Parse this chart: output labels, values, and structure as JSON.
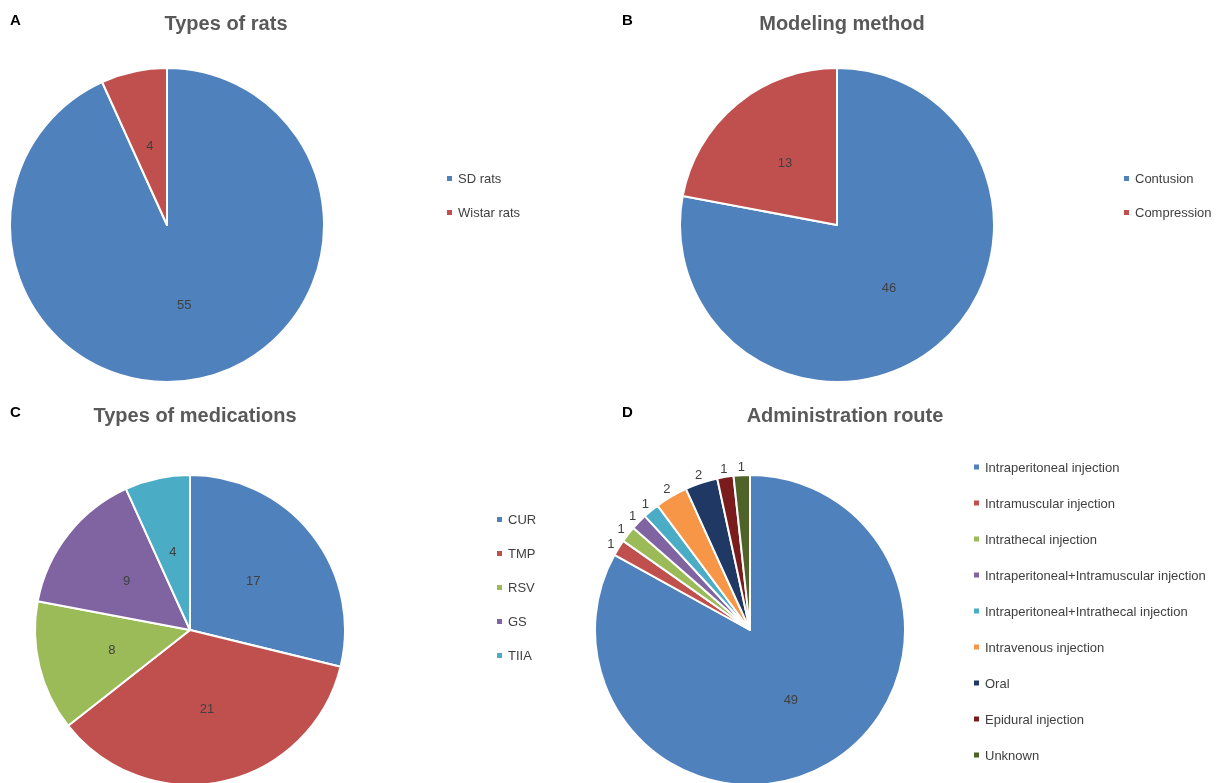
{
  "chart_data": [
    {
      "type": "pie",
      "title": "Types of rats",
      "annotations": [
        "A"
      ],
      "categories": [
        "SD rats",
        "Wistar rats"
      ],
      "values": [
        55,
        4
      ],
      "colors": [
        "#4f81bd",
        "#c0504d"
      ],
      "data_labels": true,
      "legend": "right"
    },
    {
      "type": "pie",
      "title": "Modeling method",
      "annotations": [
        "B"
      ],
      "categories": [
        "Contusion",
        "Compression"
      ],
      "values": [
        46,
        13
      ],
      "colors": [
        "#4f81bd",
        "#c0504d"
      ],
      "data_labels": true,
      "legend": "right"
    },
    {
      "type": "pie",
      "title": "Types of medications",
      "annotations": [
        "C"
      ],
      "categories": [
        "CUR",
        "TMP",
        "RSV",
        "GS",
        "TIIA"
      ],
      "values": [
        17,
        21,
        8,
        9,
        4
      ],
      "colors": [
        "#4f81bd",
        "#c0504d",
        "#9bbb59",
        "#8064a2",
        "#4bacc6"
      ],
      "data_labels": true,
      "legend": "right"
    },
    {
      "type": "pie",
      "title": "Administration route",
      "annotations": [
        "D"
      ],
      "categories": [
        "Intraperitoneal injection",
        "Intramuscular injection",
        "Intrathecal injection",
        "Intraperitoneal+Intramuscular injection",
        "Intraperitoneal+Intrathecal injection",
        "Intravenous injection",
        "Oral",
        "Epidural injection",
        "Unknown"
      ],
      "values": [
        49,
        1,
        1,
        1,
        1,
        2,
        2,
        1,
        1
      ],
      "colors": [
        "#4f81bd",
        "#c0504d",
        "#9bbb59",
        "#8064a2",
        "#4bacc6",
        "#f79646",
        "#1f3864",
        "#7b1c1c",
        "#4f6228"
      ],
      "data_labels": true,
      "legend": "right"
    }
  ]
}
